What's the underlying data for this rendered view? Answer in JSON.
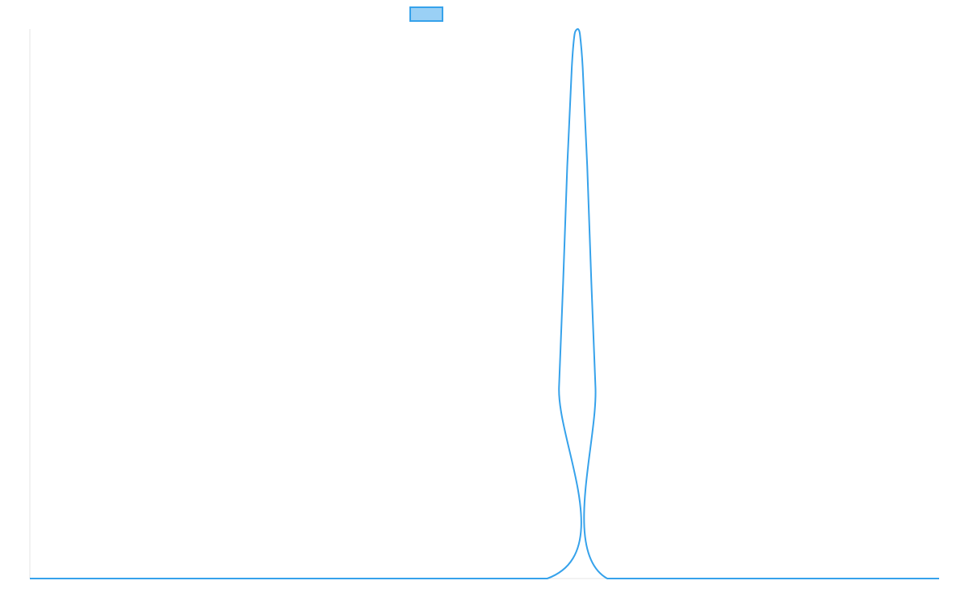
{
  "chart_data": {
    "type": "line",
    "title": "",
    "xlabel": "",
    "ylabel": "",
    "xlim": [
      0,
      100
    ],
    "ylim": [
      0,
      1
    ],
    "grid": false,
    "legend": {
      "position": "top-center",
      "entries": [
        {
          "label": "",
          "color": "#36a2eb",
          "fill": "#9ad0f5"
        }
      ]
    },
    "series": [
      {
        "name": "",
        "color": "#36a2eb",
        "x": [
          0,
          56.9,
          58.2,
          59.1,
          59.6,
          59.9,
          60.2,
          60.3,
          60.5,
          60.8,
          61.3,
          62.2,
          63.5,
          100
        ],
        "y": [
          0,
          0,
          0.35,
          0.75,
          0.93,
          0.99,
          1.0,
          1.0,
          0.99,
          0.93,
          0.75,
          0.35,
          0,
          0
        ]
      }
    ]
  }
}
